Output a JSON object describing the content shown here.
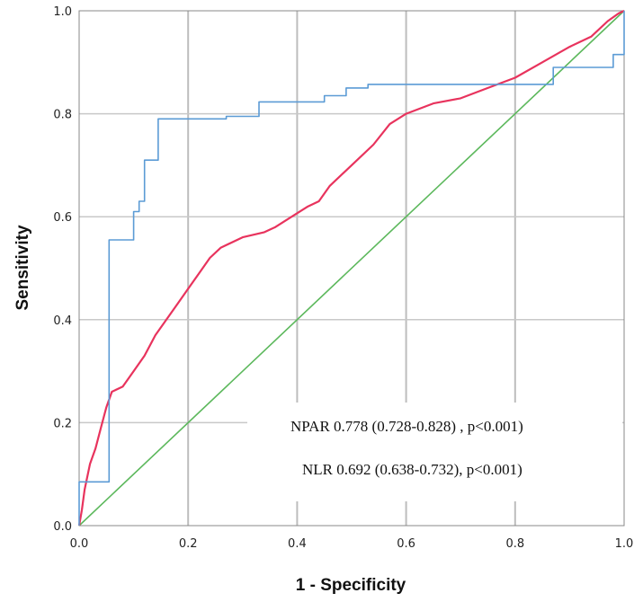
{
  "chart_data": {
    "type": "line",
    "title": "",
    "xlabel": "1 - Specificity",
    "ylabel": "Sensitivity",
    "xlim": [
      0,
      1
    ],
    "ylim": [
      0,
      1
    ],
    "x_ticks": [
      "0.0",
      "0.2",
      "0.4",
      "0.6",
      "0.8",
      "1.0"
    ],
    "y_ticks": [
      "0.0",
      "0.2",
      "0.4",
      "0.6",
      "0.8",
      "1.0"
    ],
    "grid": true,
    "annotations": [
      "NPAR 0.778 (0.728-0.828) , p<0.001)",
      "NLR 0.692 (0.638-0.732), p<0.001)"
    ],
    "series": [
      {
        "name": "NPAR",
        "color": "#5b9bd5",
        "points": [
          [
            0,
            0
          ],
          [
            0,
            0.085
          ],
          [
            0.055,
            0.085
          ],
          [
            0.055,
            0.555
          ],
          [
            0.1,
            0.555
          ],
          [
            0.1,
            0.61
          ],
          [
            0.11,
            0.61
          ],
          [
            0.11,
            0.63
          ],
          [
            0.12,
            0.63
          ],
          [
            0.12,
            0.71
          ],
          [
            0.145,
            0.71
          ],
          [
            0.145,
            0.79
          ],
          [
            0.27,
            0.79
          ],
          [
            0.27,
            0.795
          ],
          [
            0.33,
            0.795
          ],
          [
            0.33,
            0.823
          ],
          [
            0.45,
            0.823
          ],
          [
            0.45,
            0.835
          ],
          [
            0.49,
            0.835
          ],
          [
            0.49,
            0.85
          ],
          [
            0.53,
            0.85
          ],
          [
            0.53,
            0.857
          ],
          [
            0.87,
            0.857
          ],
          [
            0.87,
            0.89
          ],
          [
            0.98,
            0.89
          ],
          [
            0.98,
            0.915
          ],
          [
            1.0,
            0.915
          ],
          [
            1.0,
            1.0
          ]
        ]
      },
      {
        "name": "NLR",
        "color": "#e8335d",
        "points": [
          [
            0,
            0
          ],
          [
            0.005,
            0.03
          ],
          [
            0.01,
            0.07
          ],
          [
            0.02,
            0.12
          ],
          [
            0.03,
            0.15
          ],
          [
            0.04,
            0.19
          ],
          [
            0.05,
            0.23
          ],
          [
            0.06,
            0.26
          ],
          [
            0.08,
            0.27
          ],
          [
            0.1,
            0.3
          ],
          [
            0.12,
            0.33
          ],
          [
            0.14,
            0.37
          ],
          [
            0.16,
            0.4
          ],
          [
            0.18,
            0.43
          ],
          [
            0.2,
            0.46
          ],
          [
            0.22,
            0.49
          ],
          [
            0.24,
            0.52
          ],
          [
            0.26,
            0.54
          ],
          [
            0.3,
            0.56
          ],
          [
            0.34,
            0.57
          ],
          [
            0.36,
            0.58
          ],
          [
            0.39,
            0.6
          ],
          [
            0.42,
            0.62
          ],
          [
            0.44,
            0.63
          ],
          [
            0.46,
            0.66
          ],
          [
            0.5,
            0.7
          ],
          [
            0.54,
            0.74
          ],
          [
            0.57,
            0.78
          ],
          [
            0.6,
            0.8
          ],
          [
            0.65,
            0.82
          ],
          [
            0.7,
            0.83
          ],
          [
            0.75,
            0.85
          ],
          [
            0.8,
            0.87
          ],
          [
            0.85,
            0.9
          ],
          [
            0.9,
            0.93
          ],
          [
            0.94,
            0.95
          ],
          [
            0.97,
            0.98
          ],
          [
            0.99,
            0.995
          ],
          [
            1.0,
            1.0
          ]
        ]
      },
      {
        "name": "Reference line",
        "color": "#5cb85c",
        "points": [
          [
            0,
            0
          ],
          [
            1,
            1
          ]
        ]
      }
    ]
  }
}
